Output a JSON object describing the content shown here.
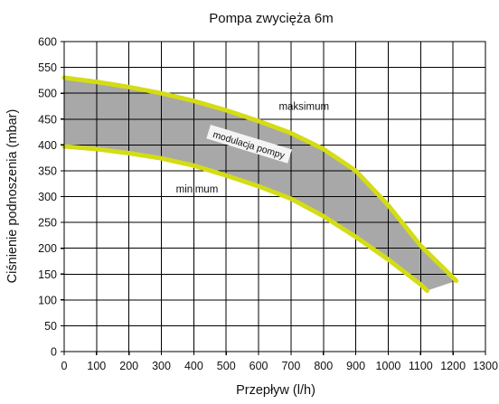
{
  "chart_data": {
    "type": "area",
    "title": "Pompa zwycięża 6m",
    "xlabel": "Przepływ (l/h)",
    "ylabel": "Ciśnienie podnoszenia (mbar)",
    "xlim": [
      0,
      1300
    ],
    "ylim": [
      0,
      600
    ],
    "xticks": [
      0,
      100,
      200,
      300,
      400,
      500,
      600,
      700,
      800,
      900,
      1000,
      1100,
      1200,
      1300
    ],
    "yticks": [
      0,
      50,
      100,
      150,
      200,
      250,
      300,
      350,
      400,
      450,
      500,
      550,
      600
    ],
    "grid": true,
    "series": [
      {
        "name": "maksimum",
        "x": [
          0,
          100,
          200,
          300,
          400,
          500,
          600,
          700,
          800,
          900,
          1000,
          1100,
          1210
        ],
        "y": [
          530,
          522,
          512,
          500,
          485,
          467,
          446,
          423,
          392,
          350,
          283,
          205,
          137
        ]
      },
      {
        "name": "minimum",
        "x": [
          0,
          100,
          200,
          300,
          400,
          500,
          600,
          700,
          800,
          900,
          1000,
          1100,
          1120
        ],
        "y": [
          397,
          392,
          384,
          374,
          360,
          341,
          320,
          296,
          262,
          222,
          178,
          130,
          118
        ]
      }
    ],
    "band": {
      "label": "modulacja pompy",
      "fill": "#a8a8a8"
    },
    "annotations": [
      {
        "text": "maksimum",
        "x": 740,
        "y": 468
      },
      {
        "text": "modulacja pompy",
        "x": 570,
        "y": 400,
        "rotation": 17
      },
      {
        "text": "minimum",
        "x": 410,
        "y": 308
      }
    ],
    "colors": {
      "curve": "#d4dc16",
      "band": "#a8a8a8",
      "grid": "#000000",
      "text": "#111111"
    }
  }
}
